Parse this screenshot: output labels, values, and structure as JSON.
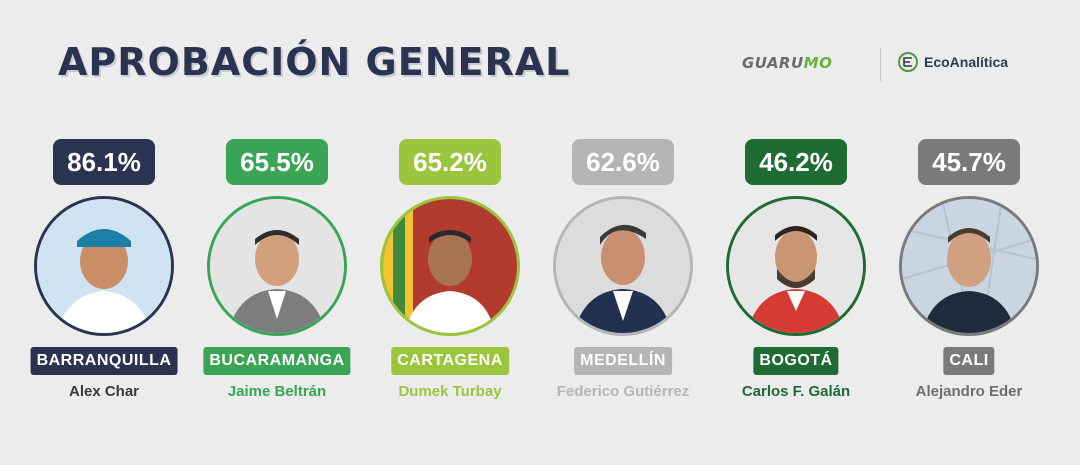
{
  "header": {
    "title": "APROBACIÓN GENERAL",
    "logo_guarumo_main": "GUARU",
    "logo_guarumo_accent": "MO",
    "logo_eco": "EcoAnalítica"
  },
  "colors": {
    "navy": "#2a3450",
    "green": "#3aa655",
    "lime": "#9bc53d",
    "gray_light": "#b5b5b5",
    "dark_green": "#1e6b34",
    "gray_dark": "#7a7a7a"
  },
  "cards": [
    {
      "percent": "86.1%",
      "city": "BARRANQUILLA",
      "name": "Alex Char"
    },
    {
      "percent": "65.5%",
      "city": "BUCARAMANGA",
      "name": "Jaime Beltrán"
    },
    {
      "percent": "65.2%",
      "city": "CARTAGENA",
      "name": "Dumek Turbay"
    },
    {
      "percent": "62.6%",
      "city": "MEDELLÍN",
      "name": "Federico Gutiérrez"
    },
    {
      "percent": "46.2%",
      "city": "BOGOTÁ",
      "name": "Carlos F. Galán"
    },
    {
      "percent": "45.7%",
      "city": "CALI",
      "name": "Alejandro Eder"
    }
  ]
}
